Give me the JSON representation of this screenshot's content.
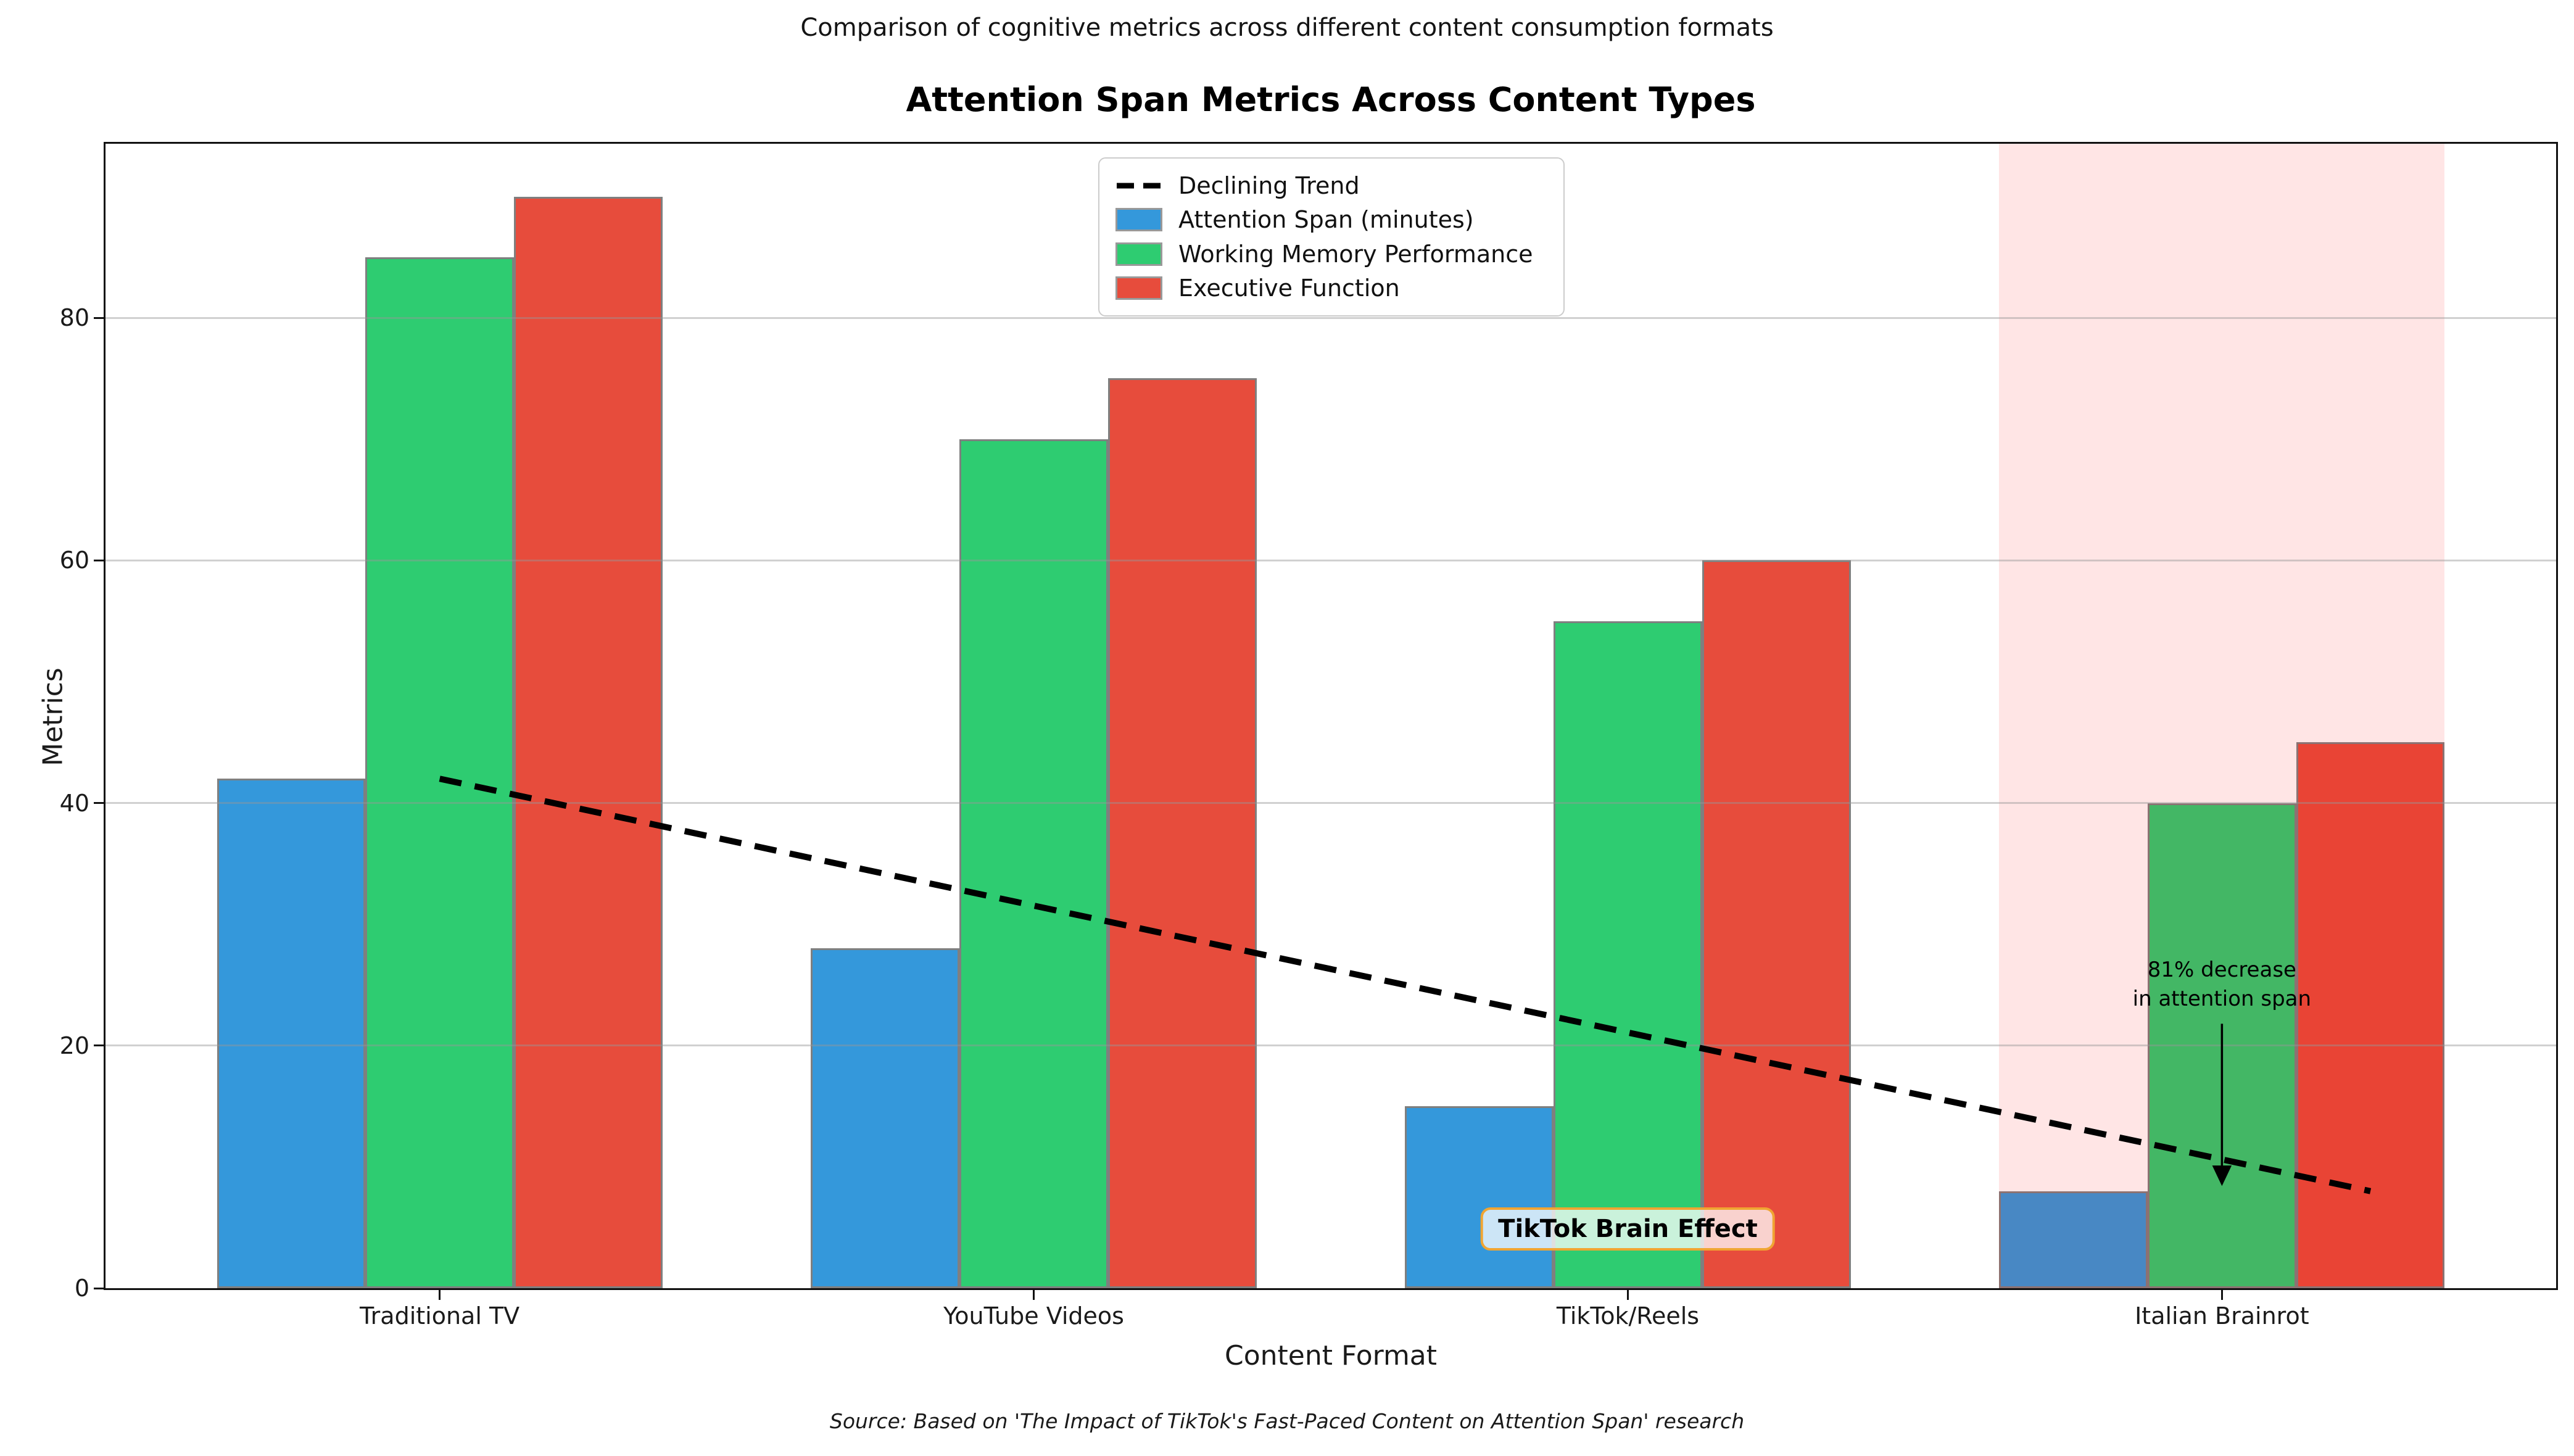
{
  "figure": {
    "suptitle": "Comparison of cognitive metrics across different content consumption formats",
    "source": "Source: Based on 'The Impact of TikTok's Fast-Paced Content on Attention Span' research"
  },
  "chart_data": {
    "type": "bar",
    "title": "Attention Span Metrics Across Content Types",
    "xlabel": "Content Format",
    "ylabel": "Metrics",
    "categories": [
      "Traditional TV",
      "YouTube Videos",
      "TikTok/Reels",
      "Italian Brainrot"
    ],
    "series": [
      {
        "name": "Attention Span (minutes)",
        "color": "#3498db",
        "values": [
          42,
          28,
          15,
          8
        ]
      },
      {
        "name": "Working Memory Performance",
        "color": "#2ecc71",
        "values": [
          85,
          70,
          55,
          40
        ]
      },
      {
        "name": "Executive Function",
        "color": "#e74c3c",
        "values": [
          90,
          75,
          60,
          45
        ]
      }
    ],
    "bar_width": 0.25,
    "bar_edge_color": "#7f7f7f",
    "xlim": [
      -0.5625,
      3.5625
    ],
    "ylim": [
      0,
      94.35
    ],
    "yticks": [
      0,
      20,
      40,
      60,
      80
    ],
    "grid": true,
    "legend_position": "upper center",
    "trend_line": {
      "label": "Declining Trend",
      "style": "dashed",
      "color": "#000000",
      "x": [
        0,
        3.25
      ],
      "y": [
        42,
        8
      ]
    },
    "highlight_span": {
      "x0": 2.625,
      "x1": 3.375,
      "color": "rgba(255,0,0,0.1)"
    },
    "annotation": {
      "lines": [
        "81% decrease",
        "in attention span"
      ],
      "x": 3,
      "text_top_value": 27.4,
      "arrow_start_value": 21.8,
      "arrow_end_value": 8.6
    },
    "badge": {
      "text": "TikTok Brain Effect",
      "x": 2,
      "y": 4.9,
      "bg": "rgba(255,255,255,0.75)",
      "border_color": "#f0a532"
    }
  }
}
